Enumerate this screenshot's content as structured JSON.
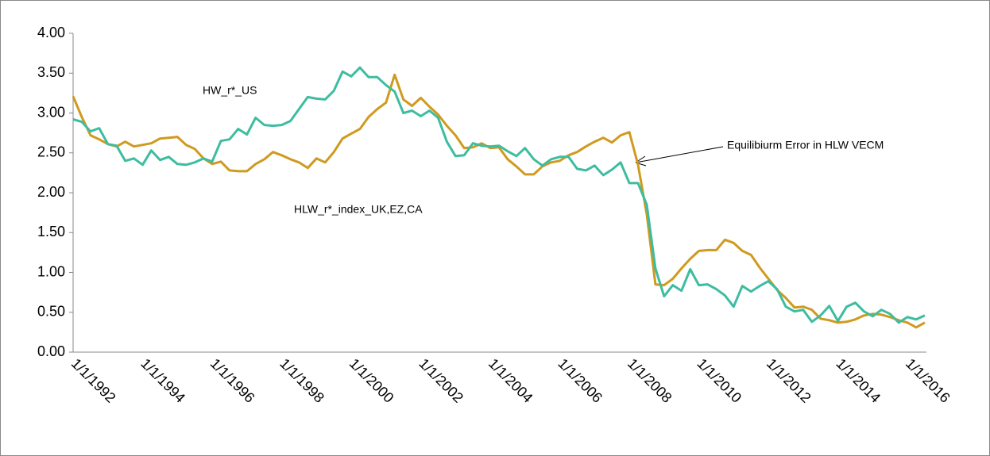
{
  "chart_data": {
    "type": "line",
    "annotations": [
      "HW_r*_US",
      "HLW_r*_index_UK,EZ,CA",
      "Equilibiurm Error in HLW VECM"
    ],
    "categories": [
      "1/1/1992",
      null,
      null,
      null,
      null,
      null,
      null,
      null,
      "1/1/1994",
      null,
      null,
      null,
      null,
      null,
      null,
      null,
      "1/1/1996",
      null,
      null,
      null,
      null,
      null,
      null,
      null,
      "1/1/1998",
      null,
      null,
      null,
      null,
      null,
      null,
      null,
      "1/1/2000",
      null,
      null,
      null,
      null,
      null,
      null,
      null,
      "1/1/2002",
      null,
      null,
      null,
      null,
      null,
      null,
      null,
      "1/1/2004",
      null,
      null,
      null,
      null,
      null,
      null,
      null,
      "1/1/2006",
      null,
      null,
      null,
      null,
      null,
      null,
      null,
      "1/1/2008",
      null,
      null,
      null,
      null,
      null,
      null,
      null,
      "1/1/2010",
      null,
      null,
      null,
      null,
      null,
      null,
      null,
      "1/1/2012",
      null,
      null,
      null,
      null,
      null,
      null,
      null,
      "1/1/2014",
      null,
      null,
      null,
      null,
      null,
      null,
      null,
      "1/1/2016",
      null,
      null
    ],
    "series": [
      {
        "color": "#cf9a1f",
        "values": [
          3.21,
          2.95,
          2.72,
          2.67,
          2.61,
          2.58,
          2.64,
          2.58,
          2.6,
          2.62,
          2.68,
          2.69,
          2.7,
          2.6,
          2.55,
          2.43,
          2.36,
          2.39,
          2.28,
          2.27,
          2.27,
          2.36,
          2.42,
          2.51,
          2.47,
          2.42,
          2.38,
          2.31,
          2.43,
          2.38,
          2.51,
          2.68,
          2.74,
          2.8,
          2.95,
          3.05,
          3.13,
          3.48,
          3.17,
          3.09,
          3.19,
          3.08,
          2.98,
          2.84,
          2.72,
          2.56,
          2.57,
          2.62,
          2.56,
          2.57,
          2.42,
          2.33,
          2.23,
          2.23,
          2.33,
          2.38,
          2.4,
          2.47,
          2.51,
          2.58,
          2.64,
          2.69,
          2.63,
          2.72,
          2.76,
          2.35,
          1.73,
          0.85,
          0.84,
          0.92,
          1.05,
          1.17,
          1.27,
          1.28,
          1.28,
          1.41,
          1.37,
          1.27,
          1.22,
          1.06,
          0.92,
          0.78,
          0.68,
          0.56,
          0.57,
          0.53,
          0.42,
          0.4,
          0.37,
          0.38,
          0.41,
          0.46,
          0.48,
          0.47,
          0.44,
          0.4,
          0.37,
          0.31,
          0.37
        ]
      },
      {
        "color": "#3dbda0",
        "values": [
          2.92,
          2.89,
          2.77,
          2.81,
          2.61,
          2.59,
          2.4,
          2.43,
          2.35,
          2.53,
          2.41,
          2.45,
          2.36,
          2.35,
          2.38,
          2.43,
          2.39,
          2.65,
          2.67,
          2.8,
          2.73,
          2.94,
          2.85,
          2.84,
          2.85,
          2.9,
          3.05,
          3.2,
          3.18,
          3.17,
          3.28,
          3.52,
          3.46,
          3.57,
          3.45,
          3.45,
          3.35,
          3.27,
          3.0,
          3.03,
          2.96,
          3.03,
          2.94,
          2.64,
          2.46,
          2.47,
          2.62,
          2.59,
          2.58,
          2.59,
          2.52,
          2.46,
          2.56,
          2.42,
          2.34,
          2.42,
          2.45,
          2.45,
          2.3,
          2.28,
          2.34,
          2.22,
          2.29,
          2.38,
          2.12,
          2.12,
          1.85,
          1.05,
          0.7,
          0.84,
          0.77,
          1.04,
          0.84,
          0.85,
          0.79,
          0.71,
          0.57,
          0.83,
          0.76,
          0.83,
          0.89,
          0.79,
          0.57,
          0.51,
          0.53,
          0.38,
          0.46,
          0.58,
          0.39,
          0.57,
          0.62,
          0.51,
          0.45,
          0.53,
          0.48,
          0.37,
          0.44,
          0.41,
          0.46
        ]
      }
    ],
    "ylim": [
      0,
      4
    ],
    "yticks": [
      {
        "value": 0,
        "label": "0.00"
      },
      {
        "value": 0.5,
        "label": "0.50"
      },
      {
        "value": 1,
        "label": "1.00"
      },
      {
        "value": 1.5,
        "label": "1.50"
      },
      {
        "value": 2,
        "label": "2.00"
      },
      {
        "value": 2.5,
        "label": "2.50"
      },
      {
        "value": 3,
        "label": "3.00"
      },
      {
        "value": 3.5,
        "label": "3.50"
      },
      {
        "value": 4,
        "label": "4.00"
      }
    ],
    "grid": false
  }
}
